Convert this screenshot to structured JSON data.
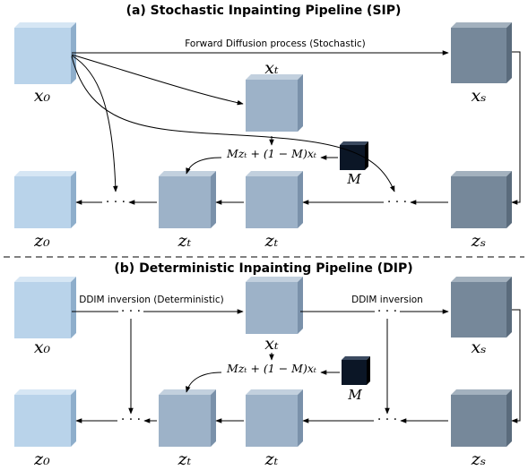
{
  "colors": {
    "light": {
      "face": "#b9d3ea",
      "top": "#d6e6f4",
      "side": "#8eaecb"
    },
    "mid": {
      "face": "#9db2c8",
      "top": "#c2d0de",
      "side": "#7a91aa"
    },
    "dark": {
      "face": "#76889a",
      "top": "#a3b1be",
      "side": "#5a6b7c"
    },
    "mask": {
      "face": "#0b1626",
      "top": "#3b4a60",
      "side": "#000000"
    }
  },
  "sip": {
    "title": "(a) Stochastic Inpainting Pipeline (SIP)",
    "edge_label": "Forward Diffusion process (Stochastic)",
    "nodes": {
      "x0": "x₀",
      "xt": "xₜ",
      "xs": "xₛ",
      "z0": "z₀",
      "zt_left": "zₜ",
      "zt_mid": "zₜ",
      "zs": "zₛ",
      "mask": "M"
    },
    "formula": "Mzₜ + (1 − M)xₜ",
    "dots": "· · ·"
  },
  "dip": {
    "title": "(b) Deterministic Inpainting Pipeline (DIP)",
    "edge_label_1": "DDIM inversion (Deterministic)",
    "edge_label_2": "DDIM inversion",
    "nodes": {
      "x0": "x₀",
      "xt": "xₜ",
      "xs": "xₛ",
      "z0": "z₀",
      "zt_left": "zₜ",
      "zt_mid": "zₜ",
      "zs": "zₛ",
      "mask": "M"
    },
    "formula": "Mzₜ + (1 − M)xₜ",
    "dots": "· · ·"
  }
}
